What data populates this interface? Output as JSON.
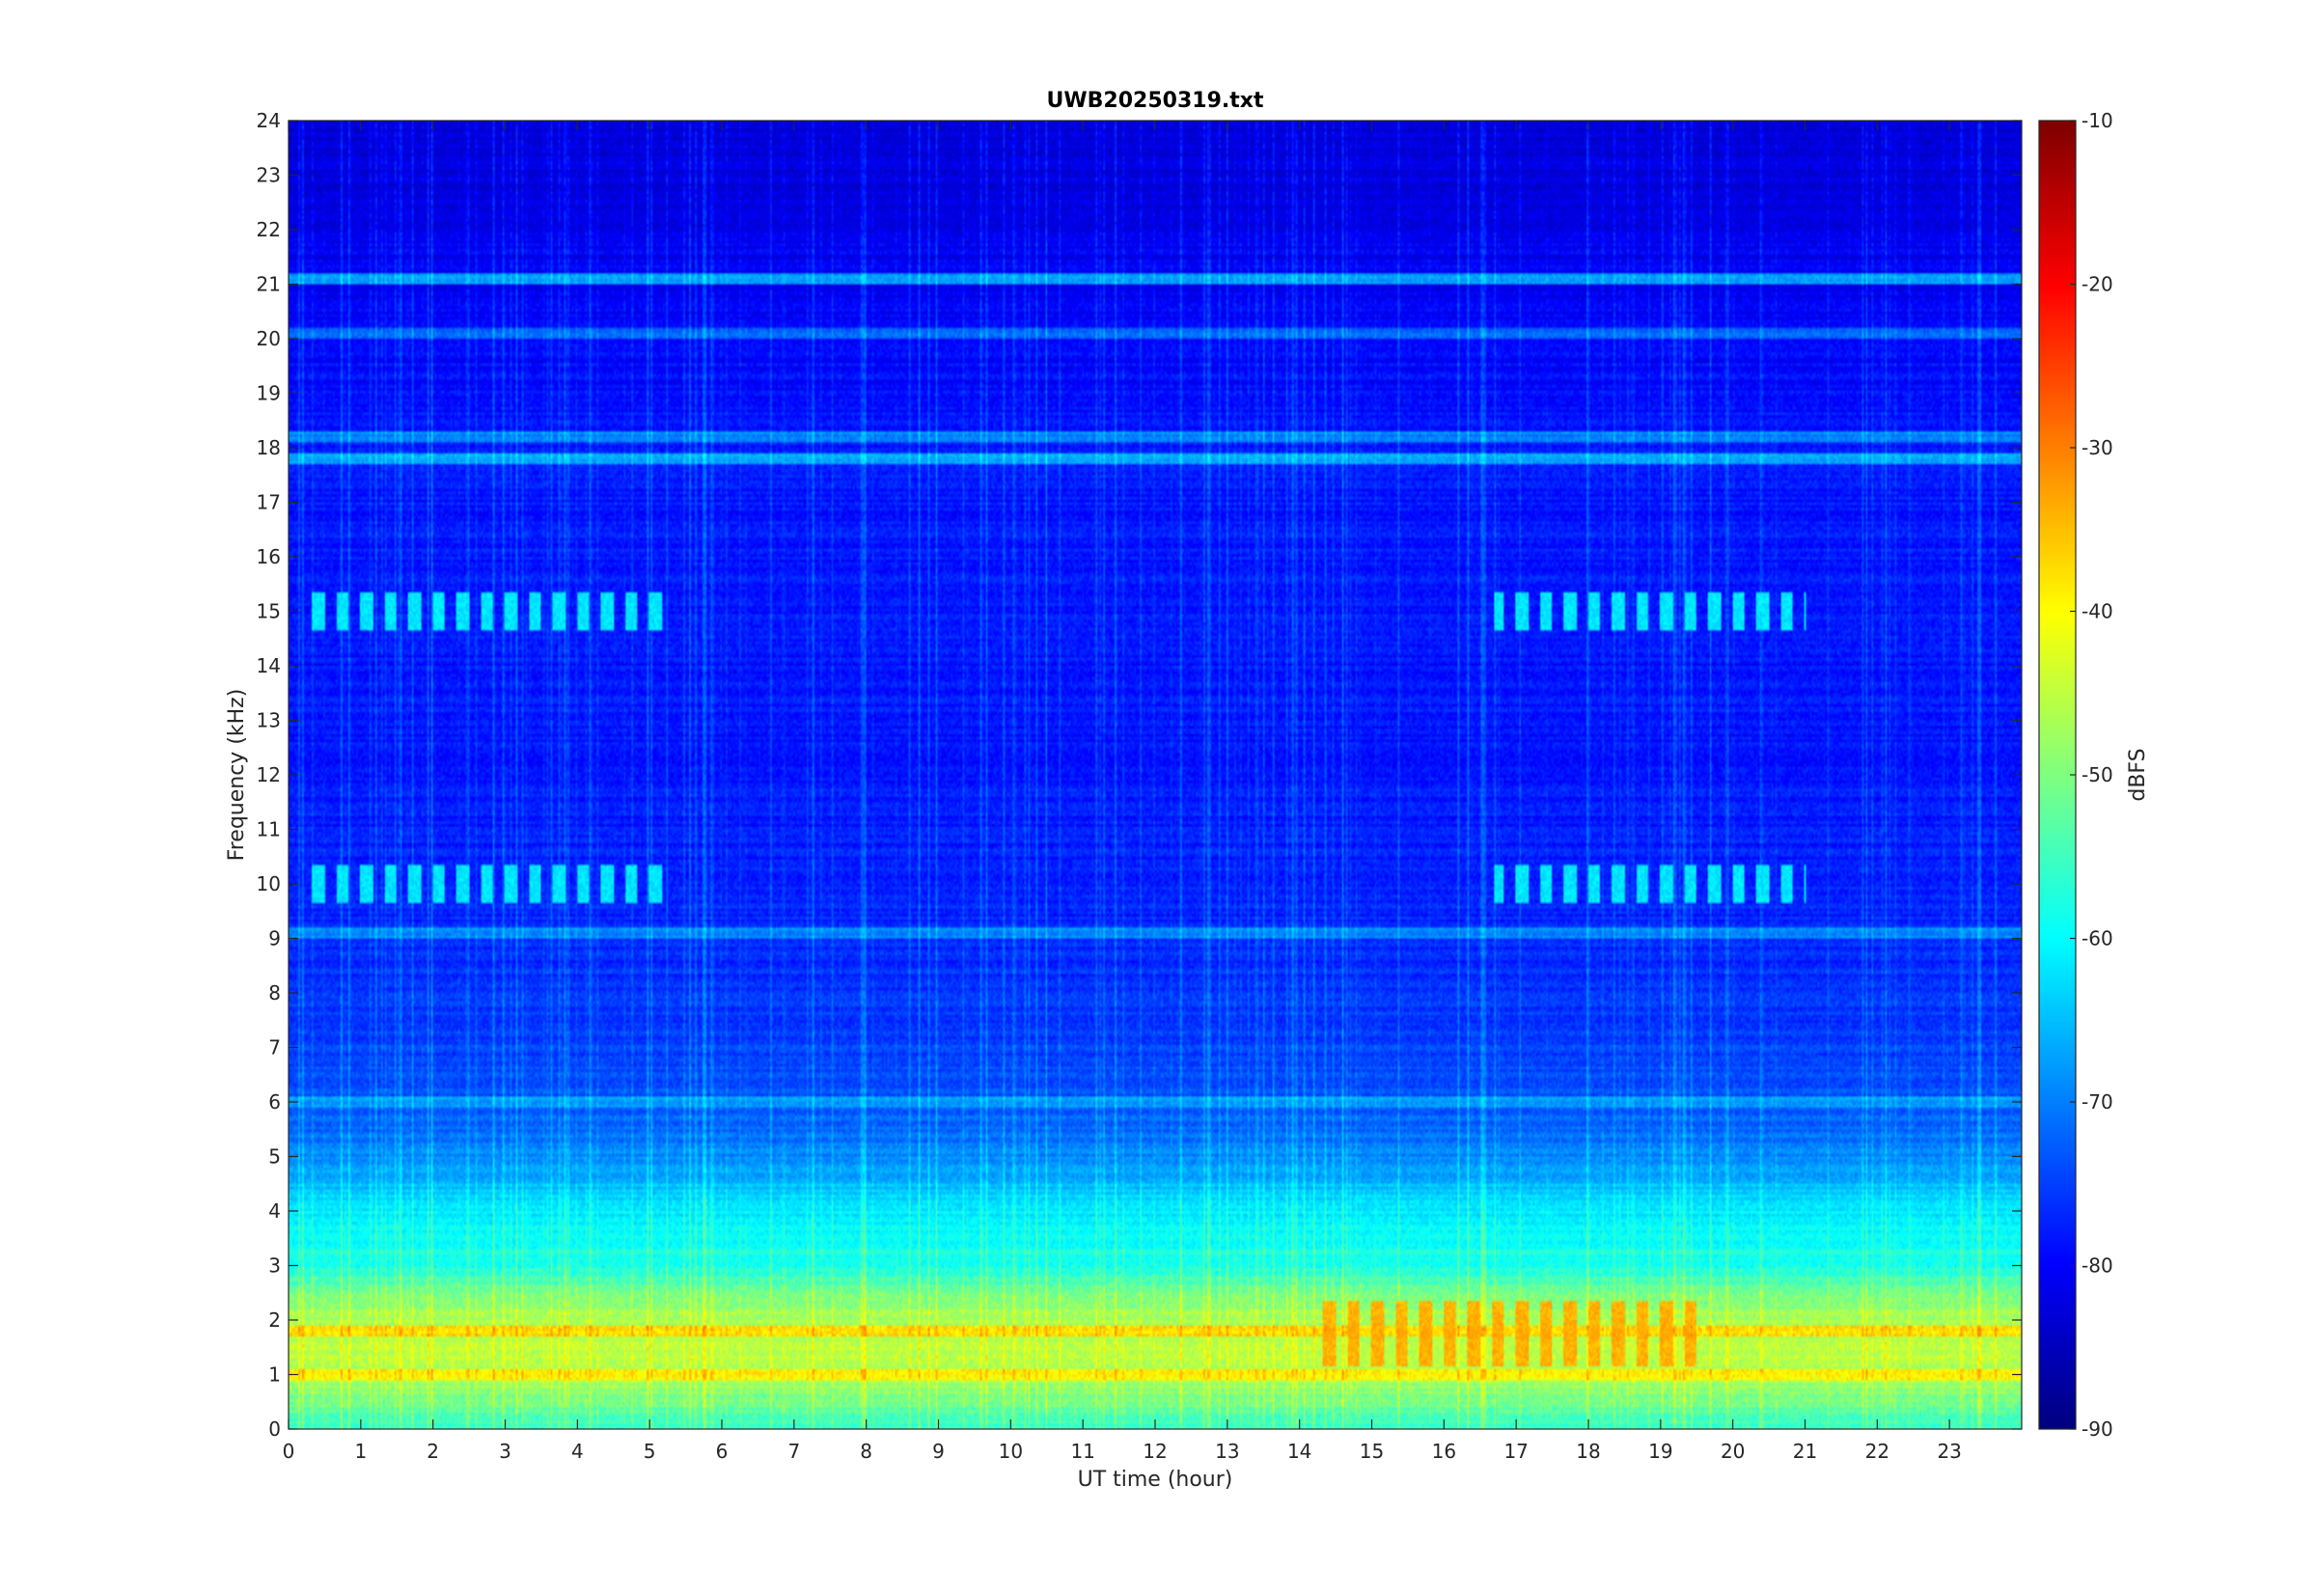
{
  "chart_data": {
    "type": "heatmap",
    "title": "UWB20250319.txt",
    "xlabel": "UT time (hour)",
    "ylabel": "Frequency (kHz)",
    "xlim": [
      0,
      24
    ],
    "ylim": [
      0,
      24
    ],
    "x_ticks": [
      "0",
      "1",
      "2",
      "3",
      "4",
      "5",
      "6",
      "7",
      "8",
      "9",
      "10",
      "11",
      "12",
      "13",
      "14",
      "15",
      "16",
      "17",
      "18",
      "19",
      "20",
      "21",
      "22",
      "23"
    ],
    "y_ticks": [
      "0",
      "1",
      "2",
      "3",
      "4",
      "5",
      "6",
      "7",
      "8",
      "9",
      "10",
      "11",
      "12",
      "13",
      "14",
      "15",
      "16",
      "17",
      "18",
      "19",
      "20",
      "21",
      "22",
      "23",
      "24"
    ],
    "colorbar": {
      "label": "dBFS",
      "range": [
        -90,
        -10
      ],
      "ticks": [
        "-10",
        "-20",
        "-30",
        "-40",
        "-50",
        "-60",
        "-70",
        "-80",
        "-90"
      ],
      "colormap": "jet"
    },
    "value_profile_by_frequency": [
      {
        "freq_khz": 0,
        "dbfs": -55
      },
      {
        "freq_khz": 1,
        "dbfs": -44
      },
      {
        "freq_khz": 2,
        "dbfs": -45
      },
      {
        "freq_khz": 3,
        "dbfs": -56
      },
      {
        "freq_khz": 4,
        "dbfs": -60
      },
      {
        "freq_khz": 5,
        "dbfs": -68
      },
      {
        "freq_khz": 6,
        "dbfs": -72
      },
      {
        "freq_khz": 8,
        "dbfs": -75
      },
      {
        "freq_khz": 12,
        "dbfs": -77
      },
      {
        "freq_khz": 18,
        "dbfs": -77
      },
      {
        "freq_khz": 22,
        "dbfs": -80
      },
      {
        "freq_khz": 24,
        "dbfs": -82
      }
    ],
    "persistent_lines_khz": [
      {
        "freq_khz": 21.1,
        "dbfs": -66
      },
      {
        "freq_khz": 18.2,
        "dbfs": -68
      },
      {
        "freq_khz": 17.8,
        "dbfs": -66
      },
      {
        "freq_khz": 20.1,
        "dbfs": -70
      },
      {
        "freq_khz": 6.0,
        "dbfs": -66
      },
      {
        "freq_khz": 9.1,
        "dbfs": -68
      },
      {
        "freq_khz": 1.8,
        "dbfs": -36
      },
      {
        "freq_khz": 1.0,
        "dbfs": -38
      }
    ],
    "burst_features": [
      {
        "t_start": 0.3,
        "t_end": 5.3,
        "freq_khz": [
          15.0,
          10.0
        ],
        "dbfs": -62
      },
      {
        "t_start": 16.7,
        "t_end": 21.0,
        "freq_khz": [
          15.0,
          10.0
        ],
        "dbfs": -62
      },
      {
        "t_start": 14.3,
        "t_end": 19.5,
        "freq_khz": [
          1.5,
          2.0
        ],
        "dbfs": -34
      }
    ]
  },
  "colors": {
    "background": "#ffffff",
    "axis": "#262626"
  }
}
